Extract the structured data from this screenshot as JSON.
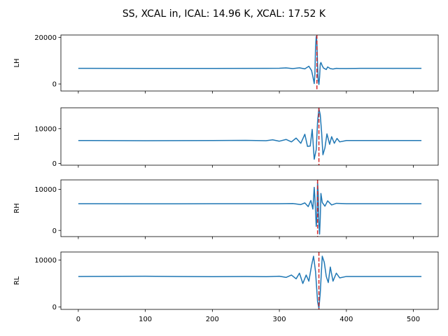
{
  "figure": {
    "title": "SS, XCAL in, ICAL: 14.96 K, XCAL: 17.52 K"
  },
  "colors": {
    "signal": "#1f77b4",
    "marker": "#d62728",
    "axes": "#000000",
    "background": "#ffffff"
  },
  "chart_data": [
    {
      "type": "line",
      "ylabel": "LH",
      "xlim": [
        -26,
        537
      ],
      "ylim": [
        -3000,
        21000
      ],
      "xticks": [
        0,
        100,
        200,
        300,
        400,
        500
      ],
      "yticks": [
        0,
        20000
      ],
      "ytick_labels": [
        "0",
        "20000"
      ],
      "show_xtick_labels": false,
      "marker_x": 356,
      "baseline": 6700,
      "series": [
        {
          "points": [
            [
              0,
              6700
            ],
            [
              100,
              6680
            ],
            [
              200,
              6690
            ],
            [
              280,
              6700
            ],
            [
              300,
              6750
            ],
            [
              310,
              6900
            ],
            [
              320,
              6600
            ],
            [
              330,
              6950
            ],
            [
              338,
              6500
            ],
            [
              344,
              7600
            ],
            [
              348,
              5800
            ],
            [
              350,
              3200
            ],
            [
              352,
              200
            ],
            [
              353,
              4000
            ],
            [
              354,
              16000
            ],
            [
              355,
              20400
            ],
            [
              356,
              18000
            ],
            [
              357,
              8000
            ],
            [
              358,
              1500
            ],
            [
              359,
              -200
            ],
            [
              360,
              3000
            ],
            [
              361,
              8500
            ],
            [
              362,
              9200
            ],
            [
              364,
              7800
            ],
            [
              366,
              6800
            ],
            [
              370,
              6200
            ],
            [
              372,
              7300
            ],
            [
              376,
              6600
            ],
            [
              380,
              6400
            ],
            [
              385,
              6700
            ],
            [
              390,
              6650
            ],
            [
              400,
              6650
            ],
            [
              420,
              6700
            ],
            [
              512,
              6700
            ]
          ]
        }
      ]
    },
    {
      "type": "line",
      "ylabel": "LL",
      "xlim": [
        -26,
        537
      ],
      "ylim": [
        -500,
        16000
      ],
      "xticks": [
        0,
        100,
        200,
        300,
        400,
        500
      ],
      "yticks": [
        0,
        10000
      ],
      "ytick_labels": [
        "0",
        "10000"
      ],
      "show_xtick_labels": false,
      "marker_x": 359,
      "baseline": 6600,
      "series": [
        {
          "points": [
            [
              0,
              6600
            ],
            [
              100,
              6550
            ],
            [
              200,
              6600
            ],
            [
              250,
              6650
            ],
            [
              280,
              6550
            ],
            [
              290,
              6800
            ],
            [
              300,
              6400
            ],
            [
              310,
              6900
            ],
            [
              318,
              6200
            ],
            [
              325,
              7300
            ],
            [
              332,
              5800
            ],
            [
              338,
              8400
            ],
            [
              342,
              4900
            ],
            [
              346,
              5000
            ],
            [
              349,
              9800
            ],
            [
              352,
              1200
            ],
            [
              355,
              4000
            ],
            [
              357,
              12000
            ],
            [
              359,
              15800
            ],
            [
              361,
              14000
            ],
            [
              363,
              9000
            ],
            [
              365,
              2500
            ],
            [
              368,
              4500
            ],
            [
              371,
              8500
            ],
            [
              375,
              5500
            ],
            [
              378,
              7700
            ],
            [
              382,
              5800
            ],
            [
              386,
              7200
            ],
            [
              390,
              6200
            ],
            [
              400,
              6600
            ],
            [
              420,
              6600
            ],
            [
              512,
              6600
            ]
          ]
        }
      ]
    },
    {
      "type": "line",
      "ylabel": "RH",
      "xlim": [
        -26,
        537
      ],
      "ylim": [
        -1500,
        12300
      ],
      "xticks": [
        0,
        100,
        200,
        300,
        400,
        500
      ],
      "yticks": [
        0,
        10000
      ],
      "ytick_labels": [
        "0",
        "10000"
      ],
      "show_xtick_labels": false,
      "marker_x": 357,
      "baseline": 6500,
      "series": [
        {
          "points": [
            [
              0,
              6500
            ],
            [
              100,
              6480
            ],
            [
              200,
              6500
            ],
            [
              300,
              6500
            ],
            [
              320,
              6550
            ],
            [
              332,
              6300
            ],
            [
              338,
              6700
            ],
            [
              343,
              5800
            ],
            [
              347,
              7300
            ],
            [
              350,
              5200
            ],
            [
              352,
              10500
            ],
            [
              353,
              8000
            ],
            [
              355,
              1000
            ],
            [
              356,
              3000
            ],
            [
              357,
              11800
            ],
            [
              358,
              9000
            ],
            [
              359,
              1500
            ],
            [
              360,
              -900
            ],
            [
              361,
              3000
            ],
            [
              362,
              9000
            ],
            [
              364,
              6800
            ],
            [
              368,
              5900
            ],
            [
              372,
              7200
            ],
            [
              378,
              6200
            ],
            [
              385,
              6600
            ],
            [
              400,
              6500
            ],
            [
              512,
              6500
            ]
          ]
        }
      ]
    },
    {
      "type": "line",
      "ylabel": "RL",
      "xlim": [
        -26,
        537
      ],
      "ylim": [
        -500,
        11700
      ],
      "xticks": [
        0,
        100,
        200,
        300,
        400,
        500
      ],
      "yticks": [
        0,
        10000
      ],
      "ytick_labels": [
        "0",
        "10000"
      ],
      "show_xtick_labels": true,
      "xtick_labels": [
        "0",
        "100",
        "200",
        "300",
        "400",
        "500"
      ],
      "marker_x": 359,
      "baseline": 6500,
      "series": [
        {
          "points": [
            [
              0,
              6500
            ],
            [
              100,
              6550
            ],
            [
              200,
              6450
            ],
            [
              250,
              6500
            ],
            [
              280,
              6450
            ],
            [
              300,
              6550
            ],
            [
              310,
              6300
            ],
            [
              318,
              6800
            ],
            [
              325,
              6000
            ],
            [
              330,
              7200
            ],
            [
              335,
              5000
            ],
            [
              340,
              6800
            ],
            [
              344,
              5500
            ],
            [
              348,
              8800
            ],
            [
              351,
              10800
            ],
            [
              354,
              7500
            ],
            [
              357,
              1200
            ],
            [
              359,
              -300
            ],
            [
              361,
              3000
            ],
            [
              364,
              10800
            ],
            [
              367,
              9500
            ],
            [
              370,
              6500
            ],
            [
              373,
              5200
            ],
            [
              376,
              8500
            ],
            [
              380,
              5500
            ],
            [
              385,
              7200
            ],
            [
              390,
              6200
            ],
            [
              400,
              6500
            ],
            [
              420,
              6500
            ],
            [
              512,
              6500
            ]
          ]
        }
      ]
    }
  ]
}
